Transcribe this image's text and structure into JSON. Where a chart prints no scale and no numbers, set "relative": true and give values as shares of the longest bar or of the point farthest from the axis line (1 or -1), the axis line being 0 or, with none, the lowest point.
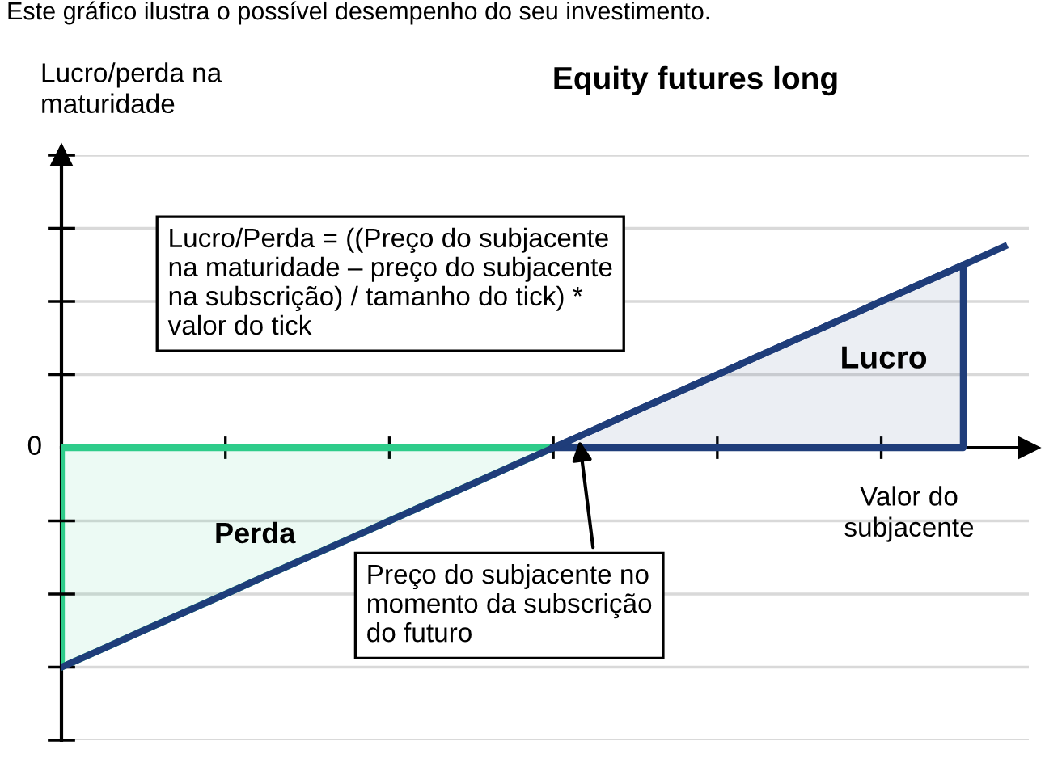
{
  "chart_data": {
    "type": "line",
    "title": "Equity futures long",
    "subtitle": "Este gráfico ilustra o possível desempenho do seu investimento.",
    "ylabel": "Lucro/perda na\nmaturidade",
    "xlabel": "Valor do\nsubjacente",
    "relative": true,
    "categories": [
      null,
      null,
      null,
      null,
      null,
      null,
      null,
      null,
      null,
      null,
      null,
      null,
      null,
      null,
      null,
      null,
      null,
      null,
      null,
      null,
      null,
      null,
      null,
      null
    ],
    "series": [
      {
        "type": "area",
        "color": "#2ecc8a",
        "values": [
          -1,
          -0.917,
          -0.833,
          -0.75,
          -0.667,
          -0.583,
          -0.5,
          -0.417,
          -0.333,
          -0.25,
          -0.167,
          -0.083,
          0,
          null,
          null,
          null,
          null,
          null,
          null,
          null,
          null,
          null,
          null,
          null
        ]
      },
      {
        "type": "area",
        "color": "#1f3d7a",
        "values": [
          null,
          null,
          null,
          null,
          null,
          null,
          null,
          null,
          null,
          null,
          null,
          null,
          0,
          0.083,
          0.167,
          0.25,
          0.333,
          0.417,
          0.5,
          0.583,
          0.667,
          0.75,
          0.833,
          null
        ]
      },
      {
        "color": "#1f3d7a",
        "values": [
          -1,
          -0.917,
          -0.833,
          -0.75,
          -0.667,
          -0.583,
          -0.5,
          -0.417,
          -0.333,
          -0.25,
          -0.167,
          -0.083,
          0,
          0.083,
          0.167,
          0.25,
          0.333,
          0.417,
          0.5,
          0.583,
          0.667,
          0.75,
          0.833,
          0.917
        ]
      }
    ],
    "grid": "y",
    "legend": false,
    "marker": "none",
    "line_style": "solid",
    "annotations": [
      "Lucro/Perda = ((Preço do subjacente\nna maturidade – preço do subjacente\nna subscrição) / tamanho do tick) *\nvalor do tick",
      "Perda",
      "Lucro",
      "Preço do subjacente no\nmomento da subscrição\ndo futuro",
      "0"
    ]
  }
}
